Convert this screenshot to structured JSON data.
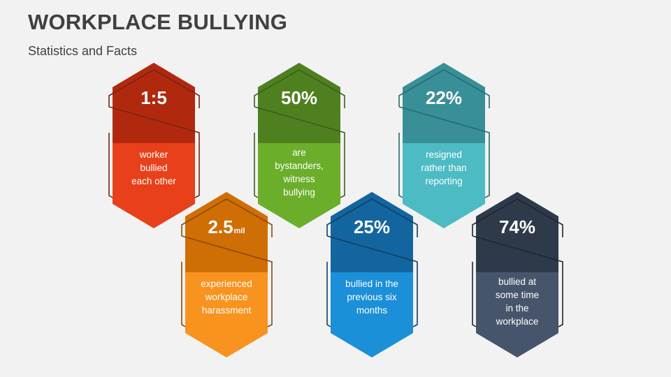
{
  "slide": {
    "title": "WORKPLACE BULLYING",
    "subtitle": "Statistics and Facts"
  },
  "cards": [
    {
      "value": "1:5",
      "unit": "",
      "lines": [
        "worker",
        "bullied",
        "each other"
      ],
      "color_dark": "#b0290f",
      "color_light": "#e8401a",
      "color_line": "#7a2410"
    },
    {
      "value": "50%",
      "unit": "",
      "lines": [
        "are",
        "bystanders,",
        "witness",
        "bullying"
      ],
      "color_dark": "#4e801f",
      "color_light": "#6bae2a",
      "color_line": "#3d5e1c"
    },
    {
      "value": "22%",
      "unit": "",
      "lines": [
        "resigned",
        "rather than",
        "reporting"
      ],
      "color_dark": "#388f97",
      "color_light": "#4dbbc4",
      "color_line": "#2b6a70"
    },
    {
      "value": "2.5",
      "unit": "mil",
      "lines": [
        "experienced",
        "workplace",
        "harassment"
      ],
      "color_dark": "#cf6e05",
      "color_light": "#f7931e",
      "color_line": "#8a4a08"
    },
    {
      "value": "25%",
      "unit": "",
      "lines": [
        "bullied in the",
        "previous six",
        "months"
      ],
      "color_dark": "#13659f",
      "color_light": "#1b8fd8",
      "color_line": "#123f63"
    },
    {
      "value": "74%",
      "unit": "",
      "lines": [
        "bullied at",
        "some time",
        "in the",
        "workplace"
      ],
      "color_dark": "#2e3a4a",
      "color_light": "#46556b",
      "color_line": "#1e2631"
    }
  ]
}
